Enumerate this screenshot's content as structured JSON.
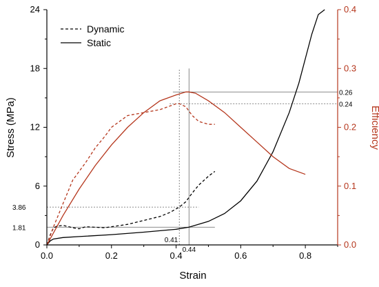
{
  "chart_data": {
    "type": "line",
    "xlabel": "Strain",
    "ylabel_left": "Stress (MPa)",
    "ylabel_right": "Efficiency",
    "xlim": [
      0.0,
      0.9
    ],
    "ylim_left": [
      0,
      24
    ],
    "ylim_right": [
      0.0,
      0.4
    ],
    "x_ticks": [
      "0.0",
      "0.2",
      "0.4",
      "0.6",
      "0.8"
    ],
    "y_left_ticks": [
      "0",
      "6",
      "12",
      "18",
      "24"
    ],
    "y_right_ticks": [
      "0.0",
      "0.1",
      "0.2",
      "0.3",
      "0.4"
    ],
    "legend": {
      "placement": "top-left",
      "items": [
        {
          "label": "Dynamic",
          "style": "dashed"
        },
        {
          "label": "Static",
          "style": "solid"
        }
      ]
    },
    "series": [
      {
        "name": "Dynamic",
        "kind": "stress",
        "axis": "left",
        "style": "dashed",
        "color": "#000000",
        "x": [
          0,
          0.01,
          0.02,
          0.03,
          0.05,
          0.08,
          0.1,
          0.12,
          0.15,
          0.18,
          0.2,
          0.25,
          0.3,
          0.35,
          0.38,
          0.41,
          0.43,
          0.45,
          0.47,
          0.5,
          0.52
        ],
        "y": [
          0,
          1.0,
          1.7,
          1.9,
          2.0,
          1.75,
          1.65,
          1.85,
          1.8,
          1.75,
          1.85,
          2.1,
          2.5,
          2.9,
          3.3,
          3.86,
          4.4,
          5.3,
          6.1,
          7.0,
          7.5
        ]
      },
      {
        "name": "Static",
        "kind": "stress",
        "axis": "left",
        "style": "solid",
        "color": "#000000",
        "x": [
          0,
          0.01,
          0.02,
          0.05,
          0.1,
          0.2,
          0.3,
          0.4,
          0.44,
          0.5,
          0.55,
          0.6,
          0.65,
          0.7,
          0.75,
          0.78,
          0.8,
          0.82,
          0.84,
          0.86
        ],
        "y": [
          0,
          0.4,
          0.6,
          0.75,
          0.85,
          1.05,
          1.3,
          1.6,
          1.81,
          2.4,
          3.2,
          4.5,
          6.5,
          9.5,
          13.5,
          16.5,
          19.0,
          21.5,
          23.5,
          24.0
        ]
      },
      {
        "name": "Dynamic",
        "kind": "efficiency",
        "axis": "right",
        "style": "dashed",
        "color": "#b5361c",
        "x": [
          0,
          0.02,
          0.05,
          0.08,
          0.1,
          0.12,
          0.15,
          0.18,
          0.2,
          0.25,
          0.3,
          0.35,
          0.4,
          0.41,
          0.43,
          0.45,
          0.47,
          0.5,
          0.52
        ],
        "y": [
          0,
          0.03,
          0.07,
          0.11,
          0.125,
          0.14,
          0.165,
          0.185,
          0.2,
          0.22,
          0.225,
          0.23,
          0.24,
          0.24,
          0.235,
          0.22,
          0.21,
          0.205,
          0.205
        ]
      },
      {
        "name": "Static",
        "kind": "efficiency",
        "axis": "right",
        "style": "solid",
        "color": "#b5361c",
        "x": [
          0,
          0.02,
          0.05,
          0.1,
          0.15,
          0.2,
          0.25,
          0.3,
          0.35,
          0.4,
          0.43,
          0.44,
          0.46,
          0.5,
          0.55,
          0.6,
          0.65,
          0.7,
          0.75,
          0.8
        ],
        "y": [
          0,
          0.02,
          0.05,
          0.095,
          0.135,
          0.17,
          0.2,
          0.225,
          0.245,
          0.255,
          0.26,
          0.26,
          0.258,
          0.245,
          0.225,
          0.2,
          0.175,
          0.15,
          0.13,
          0.12
        ]
      }
    ],
    "reference_lines": [
      {
        "orientation": "horizontal",
        "axis": "right",
        "value": 0.26,
        "label": "0.26",
        "style": "solid",
        "from_x": 0.39,
        "to_x": 0.9
      },
      {
        "orientation": "horizontal",
        "axis": "right",
        "value": 0.24,
        "label": "0.24",
        "style": "dotted",
        "from_x": 0.38,
        "to_x": 0.9
      },
      {
        "orientation": "horizontal",
        "axis": "left",
        "value": 3.86,
        "label": "3.86",
        "style": "dotted",
        "from_x": 0.0,
        "to_x": 0.47
      },
      {
        "orientation": "horizontal",
        "axis": "left",
        "value": 1.81,
        "label": "1.81",
        "style": "solid",
        "from_x": 0.0,
        "to_x": 0.52
      },
      {
        "orientation": "vertical",
        "value": 0.41,
        "label": "0.41",
        "style": "dotted",
        "from_y": 0,
        "to_y": 18
      },
      {
        "orientation": "vertical",
        "value": 0.44,
        "label": "0.44",
        "style": "solid",
        "from_y": 0,
        "to_y": 18
      }
    ],
    "colors": {
      "stress": "#000000",
      "efficiency": "#b5361c",
      "guide": "#7a7a7a"
    }
  }
}
